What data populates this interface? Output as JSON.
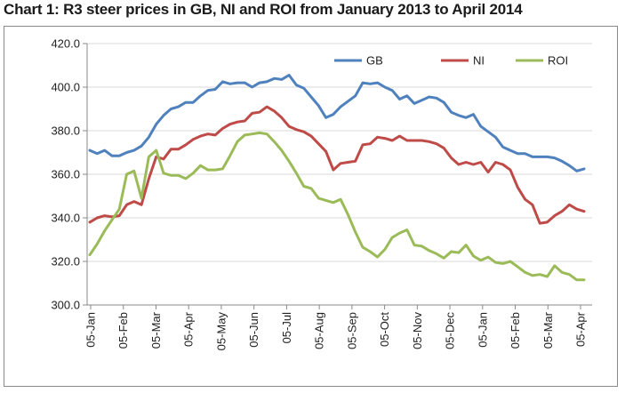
{
  "title": "Chart 1: R3 steer prices in GB, NI and ROI from January 2013 to April 2014",
  "colors": {
    "GB": "#4f81bd",
    "NI": "#be4b48",
    "ROI": "#9bbb59",
    "axis": "#888888",
    "grid": "#d9d9d9"
  },
  "chart_data": {
    "type": "line",
    "title": "Chart 1: R3 steer prices in GB, NI and ROI from January 2013 to April 2014",
    "xlabel": "",
    "ylabel": "",
    "ylim": [
      300,
      420
    ],
    "yticks": [
      300,
      320,
      340,
      360,
      380,
      400,
      420
    ],
    "ytick_labels": [
      "300.0",
      "320.0",
      "340.0",
      "360.0",
      "380.0",
      "400.0",
      "420.0"
    ],
    "grid": "horizontal",
    "legend_position": "top-right",
    "xtick_labels": [
      "05-Jan",
      "05-Feb",
      "05-Mar",
      "05-Apr",
      "05-May",
      "05-Jun",
      "05-Jul",
      "05-Aug",
      "05-Sep",
      "05-Oct",
      "05-Nov",
      "05-Dec",
      "05-Jan",
      "05-Feb",
      "05-Mar",
      "05-Apr"
    ],
    "series": [
      {
        "name": "GB",
        "values": [
          371,
          369.5,
          371,
          368.5,
          368.5,
          370,
          371,
          373,
          377,
          383,
          387,
          390,
          391,
          393,
          393,
          396,
          398.5,
          399,
          402.5,
          401.5,
          402,
          402,
          400,
          402,
          402.5,
          404,
          403.5,
          405.5,
          401,
          399.5,
          395.5,
          391.5,
          386,
          387.5,
          391,
          393.5,
          396,
          402,
          401.5,
          402,
          400,
          398.5,
          394.5,
          396,
          392.5,
          394,
          395.5,
          395,
          393,
          388.5,
          387,
          386,
          387.5,
          382,
          379.5,
          377,
          372.5,
          371,
          369.5,
          369.5,
          368,
          368,
          368,
          367.5,
          366,
          364,
          361.5,
          362.5
        ]
      },
      {
        "name": "NI",
        "values": [
          338,
          340,
          341,
          340.5,
          341,
          346,
          347.5,
          346,
          358,
          368,
          367,
          371.5,
          371.5,
          373.5,
          376,
          377.5,
          378.5,
          378,
          381,
          383,
          384,
          384.5,
          388,
          388.5,
          391,
          389,
          386,
          382,
          380.5,
          379.5,
          377.5,
          374,
          370.5,
          362,
          365,
          365.5,
          366,
          373.5,
          374,
          377,
          376.5,
          375.5,
          377.5,
          375.5,
          375.5,
          375.5,
          375,
          374,
          372,
          367.5,
          364.5,
          365.5,
          364.5,
          365.5,
          361,
          365.5,
          364.5,
          362,
          354,
          348.5,
          346,
          337.5,
          338,
          341,
          343,
          346,
          344,
          343
        ]
      },
      {
        "name": "ROI",
        "values": [
          323,
          328,
          334,
          339,
          344,
          360,
          361.5,
          349,
          368,
          371,
          360.5,
          359.5,
          359.5,
          358,
          360.5,
          364,
          362,
          362,
          362.5,
          368.5,
          375,
          378,
          378.5,
          379,
          378.5,
          375,
          371,
          366,
          360.5,
          354.5,
          353.5,
          349,
          348,
          347,
          348.5,
          341.5,
          333.5,
          326.5,
          324.5,
          322,
          325.5,
          331,
          333,
          334.5,
          327.5,
          327,
          325,
          323.5,
          321.5,
          324.5,
          324,
          327.5,
          322.5,
          320.5,
          322,
          319.5,
          319,
          320,
          317.5,
          315,
          313.5,
          314,
          313,
          318,
          315,
          314,
          311.5,
          311.5
        ]
      }
    ]
  }
}
